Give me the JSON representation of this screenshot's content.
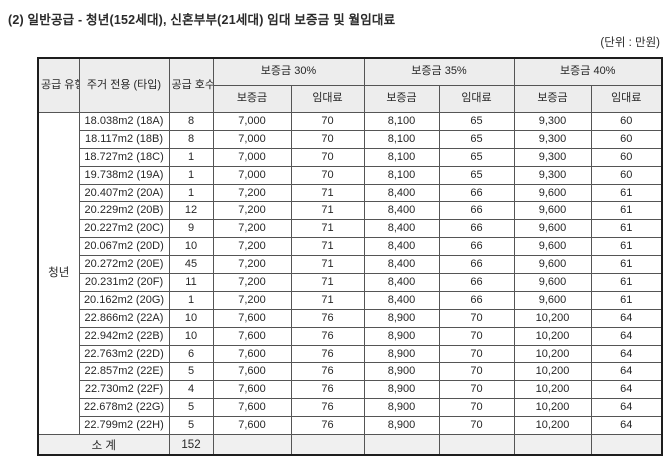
{
  "page": {
    "title": "(2) 일반공급 - 청년(152세대), 신혼부부(21세대) 임대 보증금 및 월임대료",
    "unit_label": "(단위 : 만원)"
  },
  "colors": {
    "header_bg": "#ededed",
    "footer_bg": "#f0f0f0",
    "border_dark": "#1d1d1d",
    "border_light": "#555555",
    "text": "#2e2e2e"
  },
  "table": {
    "header": {
      "supply_type": "공급\n유형",
      "area_type": "주거\n전용\n(타입)",
      "unit_count": "공급\n호수",
      "groups": [
        "보증금 30%",
        "보증금 35%",
        "보증금 40%"
      ],
      "sub": [
        "보증금",
        "임대료"
      ]
    },
    "group_label": "청년",
    "rows": [
      [
        "18.038m2 (18A)",
        "8",
        "7,000",
        "70",
        "8,100",
        "65",
        "9,300",
        "60"
      ],
      [
        "18.117m2 (18B)",
        "8",
        "7,000",
        "70",
        "8,100",
        "65",
        "9,300",
        "60"
      ],
      [
        "18.727m2 (18C)",
        "1",
        "7,000",
        "70",
        "8,100",
        "65",
        "9,300",
        "60"
      ],
      [
        "19.738m2 (19A)",
        "1",
        "7,000",
        "70",
        "8,100",
        "65",
        "9,300",
        "60"
      ],
      [
        "20.407m2 (20A)",
        "1",
        "7,200",
        "71",
        "8,400",
        "66",
        "9,600",
        "61"
      ],
      [
        "20.229m2 (20B)",
        "12",
        "7,200",
        "71",
        "8,400",
        "66",
        "9,600",
        "61"
      ],
      [
        "20.227m2 (20C)",
        "9",
        "7,200",
        "71",
        "8,400",
        "66",
        "9,600",
        "61"
      ],
      [
        "20.067m2 (20D)",
        "10",
        "7,200",
        "71",
        "8,400",
        "66",
        "9,600",
        "61"
      ],
      [
        "20.272m2 (20E)",
        "45",
        "7,200",
        "71",
        "8,400",
        "66",
        "9,600",
        "61"
      ],
      [
        "20.231m2 (20F)",
        "11",
        "7,200",
        "71",
        "8,400",
        "66",
        "9,600",
        "61"
      ],
      [
        "20.162m2 (20G)",
        "1",
        "7,200",
        "71",
        "8,400",
        "66",
        "9,600",
        "61"
      ],
      [
        "22.866m2 (22A)",
        "10",
        "7,600",
        "76",
        "8,900",
        "70",
        "10,200",
        "64"
      ],
      [
        "22.942m2 (22B)",
        "10",
        "7,600",
        "76",
        "8,900",
        "70",
        "10,200",
        "64"
      ],
      [
        "22.763m2 (22D)",
        "6",
        "7,600",
        "76",
        "8,900",
        "70",
        "10,200",
        "64"
      ],
      [
        "22.857m2 (22E)",
        "5",
        "7,600",
        "76",
        "8,900",
        "70",
        "10,200",
        "64"
      ],
      [
        "22.730m2 (22F)",
        "4",
        "7,600",
        "76",
        "8,900",
        "70",
        "10,200",
        "64"
      ],
      [
        "22.678m2 (22G)",
        "5",
        "7,600",
        "76",
        "8,900",
        "70",
        "10,200",
        "64"
      ],
      [
        "22.799m2 (22H)",
        "5",
        "7,600",
        "76",
        "8,900",
        "70",
        "10,200",
        "64"
      ]
    ],
    "footer": {
      "label": "소 계",
      "total": "152",
      "empty": ""
    }
  }
}
